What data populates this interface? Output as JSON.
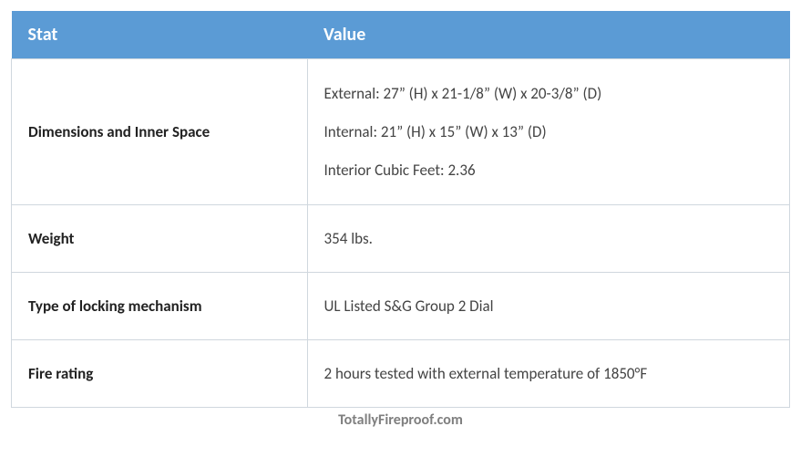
{
  "colors": {
    "header_bg": "#5b9bd5",
    "header_text": "#ffffff",
    "border": "#d0d7de",
    "body_text": "#333333",
    "stat_text": "#222222",
    "value_text_muted": "#444444",
    "footer_text": "#7f7f7f"
  },
  "layout": {
    "col1_width_pct": 38,
    "col2_width_pct": 62
  },
  "table": {
    "headers": {
      "stat": "Stat",
      "value": "Value"
    },
    "rows": [
      {
        "stat": "Dimensions and Inner Space",
        "value_lines": [
          "External: 27” (H) x 21-1/8” (W) x 20-3/8” (D)",
          "Internal: 21” (H) x 15” (W) x 13” (D)",
          "Interior Cubic Feet: 2.36"
        ]
      },
      {
        "stat": "Weight",
        "value_lines": [
          "354 lbs."
        ]
      },
      {
        "stat": "Type of locking mechanism",
        "value_lines": [
          "UL Listed S&G Group 2 Dial"
        ]
      },
      {
        "stat": "Fire rating",
        "value_lines": [
          "2 hours tested with external temperature of 1850°F"
        ]
      }
    ]
  },
  "footer": "TotallyFireproof.com"
}
